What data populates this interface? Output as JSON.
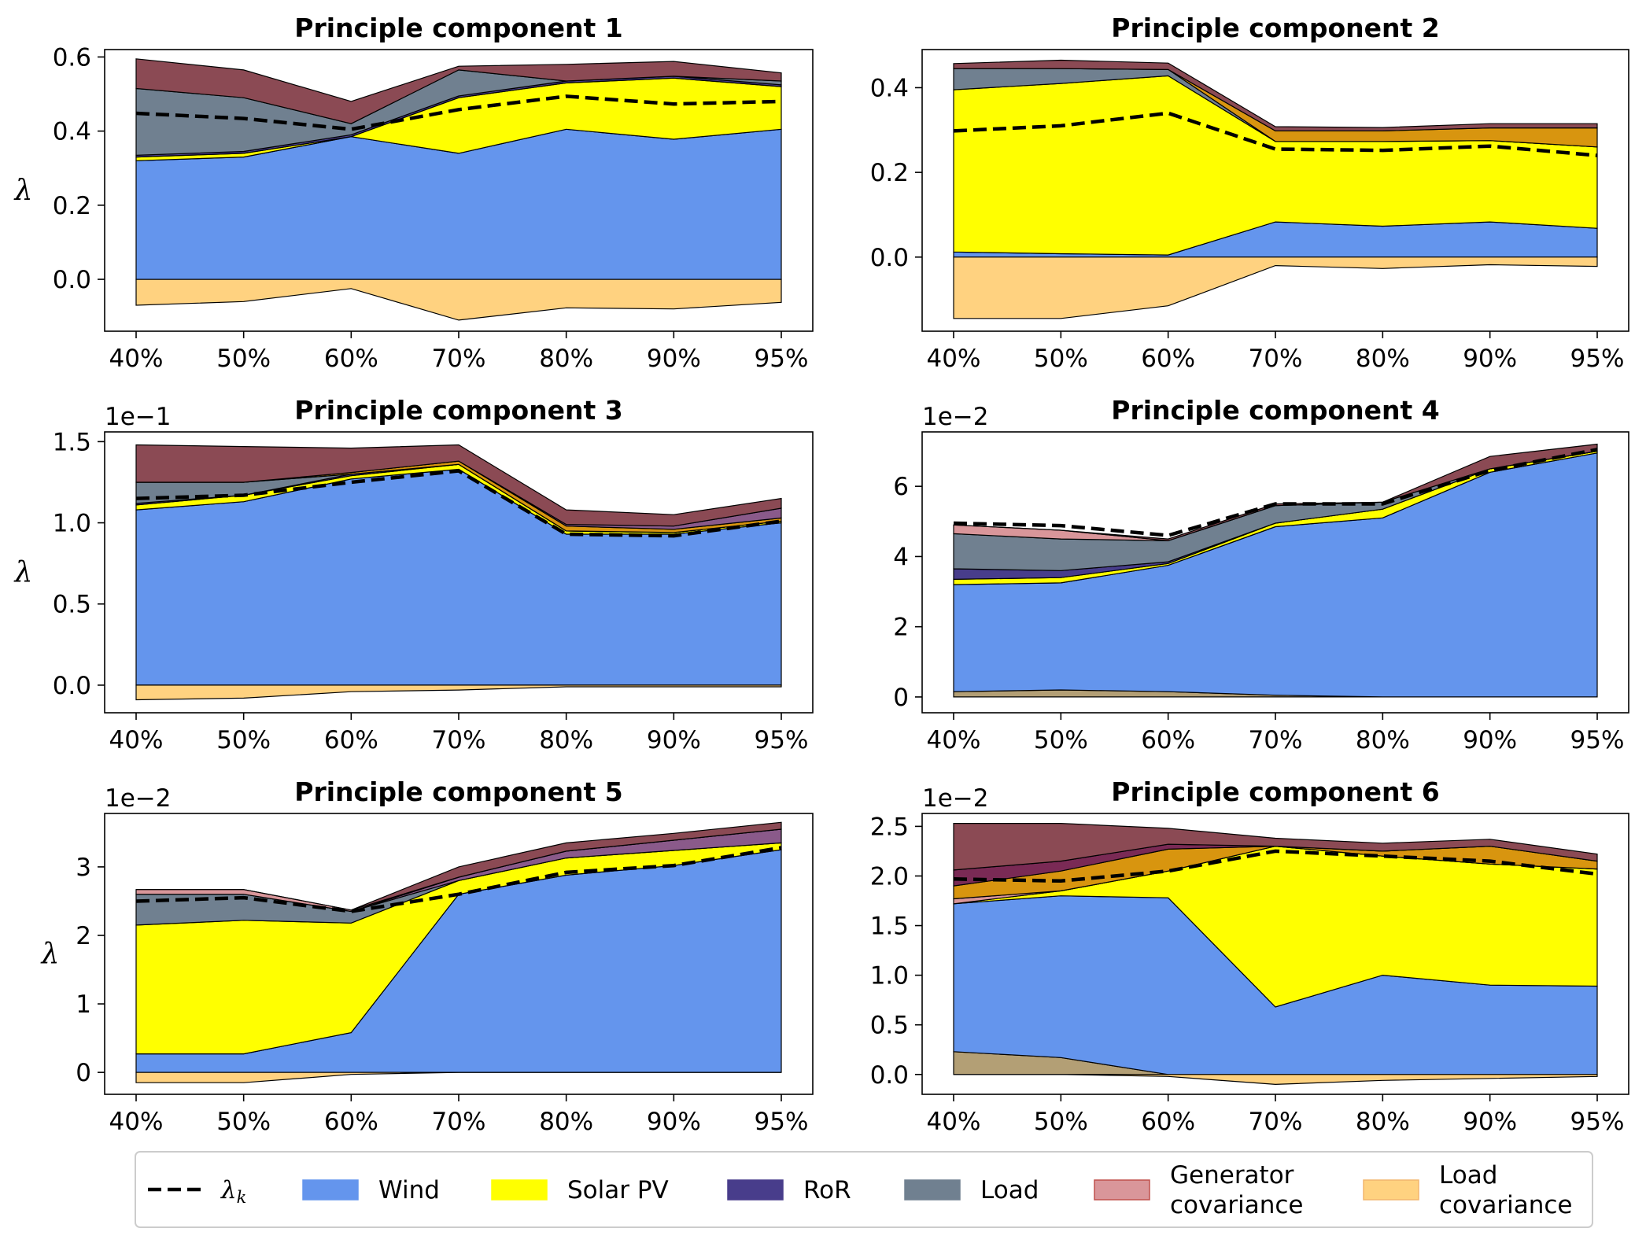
{
  "colors": {
    "wind": "#6495ed",
    "solar": "#ffff00",
    "ror": "#483d8b",
    "load": "#708090",
    "gen_cov": "#d9969a",
    "load_cov": "#ffd280",
    "pos_cov_darkred": "#8b4a54",
    "pos_cov_orange": "#d8950f",
    "pos_cov_purple": "#8a5a8a",
    "pos_cov_tan": "#b39f75",
    "pos_cov_plum": "#7a2a55"
  },
  "legend": {
    "items": [
      {
        "key": "lambda",
        "label": "λ",
        "sub": "k"
      },
      {
        "key": "wind",
        "label": "Wind"
      },
      {
        "key": "solar",
        "label": "Solar PV"
      },
      {
        "key": "ror",
        "label": "RoR"
      },
      {
        "key": "load",
        "label": "Load"
      },
      {
        "key": "gen_cov",
        "label": "Generator",
        "label2": "covariance"
      },
      {
        "key": "load_cov",
        "label": "Load",
        "label2": "covariance"
      }
    ]
  },
  "chart_data": [
    {
      "type": "area",
      "title": "Principle component 1",
      "ylabel": "λ",
      "scale_label": "",
      "categories": [
        "40%",
        "50%",
        "60%",
        "70%",
        "80%",
        "90%",
        "95%"
      ],
      "ylim": [
        -0.14,
        0.62
      ],
      "yticks": [
        0.0,
        0.2,
        0.4,
        0.6
      ],
      "ytick_labels": [
        "0.0",
        "0.2",
        "0.4",
        "0.6"
      ],
      "lambda": [
        0.448,
        0.434,
        0.405,
        0.458,
        0.494,
        0.473,
        0.48
      ],
      "positive_series": [
        {
          "color_key": "wind",
          "values": [
            0.32,
            0.33,
            0.385,
            0.34,
            0.405,
            0.378,
            0.405
          ]
        },
        {
          "color_key": "solar",
          "values": [
            0.01,
            0.01,
            0.0,
            0.15,
            0.125,
            0.165,
            0.115
          ]
        },
        {
          "color_key": "ror",
          "values": [
            0.005,
            0.005,
            0.005,
            0.005,
            0.005,
            0.005,
            0.005
          ]
        },
        {
          "color_key": "load",
          "values": [
            0.18,
            0.145,
            0.03,
            0.07,
            0.0,
            0.0,
            0.01
          ]
        },
        {
          "color_key": "pos_cov_darkred",
          "values": [
            0.08,
            0.075,
            0.06,
            0.01,
            0.045,
            0.04,
            0.022
          ]
        }
      ],
      "negative_series": [
        {
          "color_key": "load_cov",
          "values": [
            -0.07,
            -0.06,
            -0.025,
            -0.11,
            -0.077,
            -0.08,
            -0.062
          ]
        }
      ]
    },
    {
      "type": "area",
      "title": "Principle component 2",
      "ylabel": "",
      "scale_label": "",
      "categories": [
        "40%",
        "50%",
        "60%",
        "70%",
        "80%",
        "90%",
        "95%"
      ],
      "ylim": [
        -0.175,
        0.49
      ],
      "yticks": [
        0.0,
        0.2,
        0.4
      ],
      "ytick_labels": [
        "0.0",
        "0.2",
        "0.4"
      ],
      "lambda": [
        0.298,
        0.31,
        0.34,
        0.255,
        0.252,
        0.262,
        0.24
      ],
      "positive_series": [
        {
          "color_key": "wind",
          "values": [
            0.012,
            0.008,
            0.005,
            0.083,
            0.073,
            0.083,
            0.068
          ]
        },
        {
          "color_key": "solar",
          "values": [
            0.383,
            0.402,
            0.423,
            0.19,
            0.2,
            0.192,
            0.192
          ]
        },
        {
          "color_key": "load",
          "values": [
            0.05,
            0.035,
            0.015,
            0.0,
            0.0,
            0.0,
            0.0
          ]
        },
        {
          "color_key": "pos_cov_orange",
          "values": [
            0.0,
            0.0,
            0.0,
            0.025,
            0.025,
            0.03,
            0.045
          ]
        },
        {
          "color_key": "pos_cov_darkred",
          "values": [
            0.012,
            0.02,
            0.015,
            0.01,
            0.008,
            0.01,
            0.01
          ]
        }
      ],
      "negative_series": [
        {
          "color_key": "load_cov",
          "values": [
            -0.145,
            -0.145,
            -0.115,
            -0.02,
            -0.027,
            -0.018,
            -0.022
          ]
        }
      ]
    },
    {
      "type": "area",
      "title": "Principle component 3",
      "ylabel": "λ",
      "scale_label": "1e−1",
      "categories": [
        "40%",
        "50%",
        "60%",
        "70%",
        "80%",
        "90%",
        "95%"
      ],
      "ylim": [
        -0.17,
        1.56
      ],
      "yticks": [
        0.0,
        0.5,
        1.0,
        1.5
      ],
      "ytick_labels": [
        "0.0",
        "0.5",
        "1.0",
        "1.5"
      ],
      "lambda": [
        1.15,
        1.17,
        1.25,
        1.32,
        0.93,
        0.92,
        1.01
      ],
      "positive_series": [
        {
          "color_key": "wind",
          "values": [
            1.08,
            1.13,
            1.27,
            1.33,
            0.93,
            0.93,
            1.0
          ]
        },
        {
          "color_key": "solar",
          "values": [
            0.03,
            0.04,
            0.02,
            0.03,
            0.02,
            0.01,
            0.01
          ]
        },
        {
          "color_key": "ror",
          "values": [
            0.01,
            0.0,
            0.01,
            0.0,
            0.0,
            0.0,
            0.0
          ]
        },
        {
          "color_key": "load",
          "values": [
            0.13,
            0.08,
            0.0,
            0.0,
            0.0,
            0.0,
            0.0
          ]
        },
        {
          "color_key": "pos_cov_orange",
          "values": [
            0.0,
            0.0,
            0.01,
            0.02,
            0.03,
            0.02,
            0.02
          ]
        },
        {
          "color_key": "pos_cov_purple",
          "values": [
            0.0,
            0.0,
            0.0,
            0.0,
            0.01,
            0.02,
            0.06
          ]
        },
        {
          "color_key": "pos_cov_darkred",
          "values": [
            0.23,
            0.22,
            0.15,
            0.1,
            0.09,
            0.07,
            0.06
          ]
        }
      ],
      "negative_series": [
        {
          "color_key": "load_cov",
          "values": [
            -0.09,
            -0.08,
            -0.04,
            -0.03,
            -0.01,
            -0.01,
            -0.01
          ]
        }
      ]
    },
    {
      "type": "area",
      "title": "Principle component 4",
      "ylabel": "",
      "scale_label": "1e−2",
      "categories": [
        "40%",
        "50%",
        "60%",
        "70%",
        "80%",
        "90%",
        "95%"
      ],
      "ylim": [
        -0.45,
        7.55
      ],
      "yticks": [
        0,
        2,
        4,
        6
      ],
      "ytick_labels": [
        "0",
        "2",
        "4",
        "6"
      ],
      "lambda": [
        4.95,
        4.88,
        4.6,
        5.5,
        5.5,
        6.45,
        7.05
      ],
      "positive_series": [
        {
          "color_key": "pos_cov_tan",
          "values": [
            0.15,
            0.2,
            0.15,
            0.05,
            0.0,
            0.0,
            0.0
          ]
        },
        {
          "color_key": "wind",
          "values": [
            3.05,
            3.05,
            3.6,
            4.8,
            5.1,
            6.4,
            6.95
          ]
        },
        {
          "color_key": "solar",
          "values": [
            0.15,
            0.15,
            0.05,
            0.1,
            0.25,
            0.1,
            0.05
          ]
        },
        {
          "color_key": "ror",
          "values": [
            0.3,
            0.2,
            0.05,
            0.0,
            0.0,
            0.0,
            0.0
          ]
        },
        {
          "color_key": "load",
          "values": [
            1.0,
            0.9,
            0.6,
            0.5,
            0.2,
            0.0,
            0.0
          ]
        },
        {
          "color_key": "gen_cov",
          "values": [
            0.25,
            0.25,
            0.0,
            0.0,
            0.0,
            0.0,
            0.0
          ]
        },
        {
          "color_key": "pos_cov_darkred",
          "values": [
            0.0,
            0.0,
            0.05,
            0.05,
            0.0,
            0.35,
            0.2
          ]
        }
      ],
      "negative_series": []
    },
    {
      "type": "area",
      "title": "Principle component 5",
      "ylabel": "λ",
      "scale_label": "1e−2",
      "categories": [
        "40%",
        "50%",
        "60%",
        "70%",
        "80%",
        "90%",
        "95%"
      ],
      "ylim": [
        -0.32,
        3.78
      ],
      "yticks": [
        0,
        1,
        2,
        3
      ],
      "ytick_labels": [
        "0",
        "1",
        "2",
        "3"
      ],
      "lambda": [
        2.5,
        2.55,
        2.35,
        2.6,
        2.92,
        3.02,
        3.28
      ],
      "positive_series": [
        {
          "color_key": "wind",
          "values": [
            0.27,
            0.27,
            0.58,
            2.6,
            2.88,
            3.02,
            3.25
          ]
        },
        {
          "color_key": "solar",
          "values": [
            1.88,
            1.95,
            1.6,
            0.2,
            0.25,
            0.22,
            0.1
          ]
        },
        {
          "color_key": "load",
          "values": [
            0.45,
            0.38,
            0.17,
            0.0,
            0.0,
            0.0,
            0.0
          ]
        },
        {
          "color_key": "pos_cov_purple",
          "values": [
            0.0,
            0.0,
            0.0,
            0.05,
            0.1,
            0.15,
            0.2
          ]
        },
        {
          "color_key": "gen_cov",
          "values": [
            0.07,
            0.07,
            0.02,
            0.0,
            0.0,
            0.0,
            0.0
          ]
        },
        {
          "color_key": "pos_cov_darkred",
          "values": [
            0.0,
            0.0,
            0.0,
            0.15,
            0.12,
            0.1,
            0.1
          ]
        }
      ],
      "negative_series": [
        {
          "color_key": "load_cov",
          "values": [
            -0.15,
            -0.15,
            -0.03,
            0.0,
            0.0,
            0.0,
            0.0
          ]
        }
      ]
    },
    {
      "type": "area",
      "title": "Principle component 6",
      "ylabel": "",
      "scale_label": "1e−2",
      "categories": [
        "40%",
        "50%",
        "60%",
        "70%",
        "80%",
        "90%",
        "95%"
      ],
      "ylim": [
        -0.2,
        2.63
      ],
      "yticks": [
        0.0,
        0.5,
        1.0,
        1.5,
        2.0,
        2.5
      ],
      "ytick_labels": [
        "0.0",
        "0.5",
        "1.0",
        "1.5",
        "2.0",
        "2.5"
      ],
      "lambda": [
        1.97,
        1.95,
        2.05,
        2.25,
        2.2,
        2.15,
        2.02
      ],
      "positive_series": [
        {
          "color_key": "pos_cov_tan",
          "values": [
            0.23,
            0.17,
            0.0,
            0.0,
            0.0,
            0.0,
            0.0
          ]
        },
        {
          "color_key": "wind",
          "values": [
            1.49,
            1.63,
            1.78,
            0.68,
            1.0,
            0.9,
            0.89
          ]
        },
        {
          "color_key": "solar",
          "values": [
            0.0,
            0.05,
            0.27,
            1.62,
            1.2,
            1.22,
            1.18
          ]
        },
        {
          "color_key": "gen_cov",
          "values": [
            0.05,
            0.0,
            0.0,
            0.0,
            0.0,
            0.0,
            0.0
          ]
        },
        {
          "color_key": "pos_cov_orange",
          "values": [
            0.13,
            0.2,
            0.22,
            0.0,
            0.05,
            0.18,
            0.08
          ]
        },
        {
          "color_key": "pos_cov_plum",
          "values": [
            0.16,
            0.1,
            0.05,
            0.0,
            0.0,
            0.0,
            0.0
          ]
        },
        {
          "color_key": "pos_cov_darkred",
          "values": [
            0.47,
            0.38,
            0.16,
            0.08,
            0.08,
            0.07,
            0.07
          ]
        }
      ],
      "negative_series": [
        {
          "color_key": "load_cov",
          "values": [
            0.0,
            0.0,
            -0.02,
            -0.1,
            -0.06,
            -0.04,
            -0.02
          ]
        }
      ]
    }
  ]
}
